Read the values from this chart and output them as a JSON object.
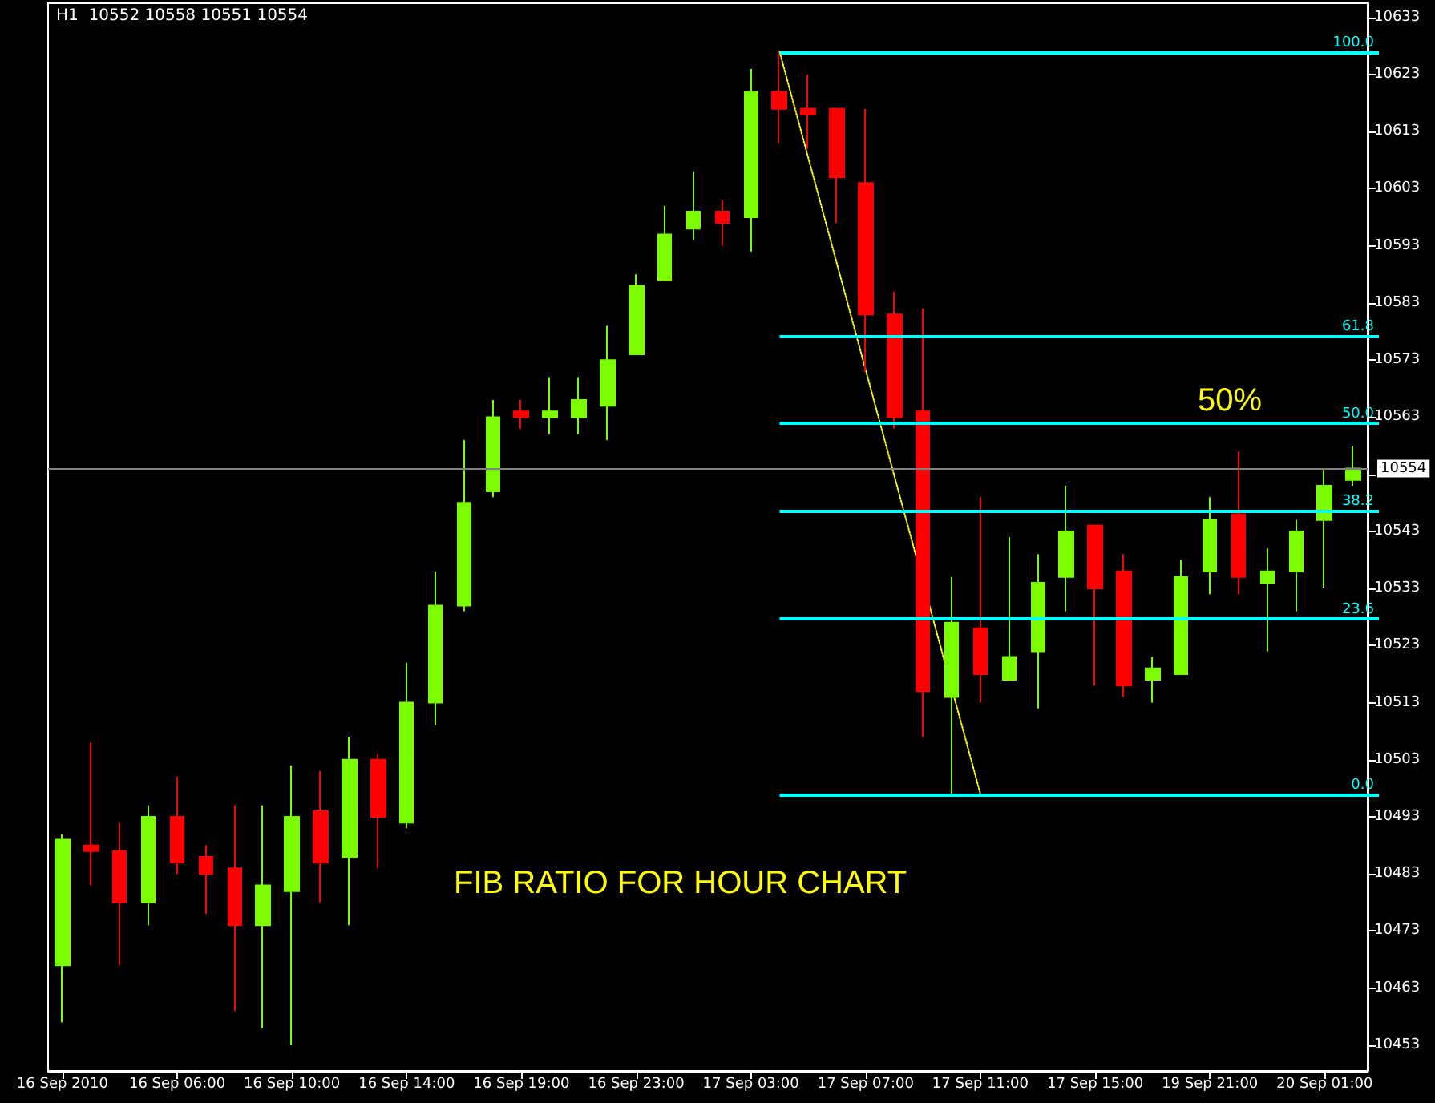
{
  "chart_data": {
    "type": "candlestick",
    "title": "H1  10552 10558 10551 10554",
    "categories": [
      "16 Sep 2010",
      null,
      null,
      null,
      "16 Sep 06:00",
      null,
      null,
      null,
      "16 Sep 10:00",
      null,
      null,
      null,
      "16 Sep 14:00",
      null,
      null,
      null,
      "16 Sep 19:00",
      null,
      null,
      null,
      "16 Sep 23:00",
      null,
      null,
      null,
      "17 Sep 03:00",
      null,
      null,
      null,
      "17 Sep 07:00",
      null,
      null,
      null,
      "17 Sep 11:00",
      null,
      null,
      null,
      "17 Sep 15:00",
      null,
      null,
      null,
      "19 Sep 21:00",
      null,
      null,
      null,
      "20 Sep 01:00",
      null
    ],
    "ohlc": [
      [
        10467,
        10490,
        10457,
        10489
      ],
      [
        10488,
        10506,
        10481,
        10487
      ],
      [
        10487,
        10492,
        10467,
        10478
      ],
      [
        10478,
        10495,
        10474,
        10493
      ],
      [
        10493,
        10500,
        10483,
        10485
      ],
      [
        10486,
        10488,
        10476,
        10483
      ],
      [
        10484,
        10495,
        10459,
        10474
      ],
      [
        10474,
        10495,
        10456,
        10481
      ],
      [
        10480,
        10502,
        10453,
        10493
      ],
      [
        10494,
        10501,
        10478,
        10485
      ],
      [
        10486,
        10507,
        10474,
        10503
      ],
      [
        10503,
        10504,
        10484,
        10493
      ],
      [
        10492,
        10520,
        10491,
        10513
      ],
      [
        10513,
        10536,
        10509,
        10530
      ],
      [
        10530,
        10559,
        10529,
        10548
      ],
      [
        10550,
        10566,
        10549,
        10563
      ],
      [
        10564,
        10566,
        10561,
        10563
      ],
      [
        10563,
        10570,
        10560,
        10564
      ],
      [
        10563,
        10570,
        10560,
        10566
      ],
      [
        10565,
        10579,
        10559,
        10573
      ],
      [
        10574,
        10588,
        10574,
        10586
      ],
      [
        10587,
        10600,
        10587,
        10595
      ],
      [
        10596,
        10606,
        10594,
        10599
      ],
      [
        10599,
        10601,
        10593,
        10597
      ],
      [
        10598,
        10624,
        10592,
        10620
      ],
      [
        10620,
        10627,
        10611,
        10617
      ],
      [
        10617,
        10623,
        10610,
        10616
      ],
      [
        10617,
        10617,
        10597,
        10605
      ],
      [
        10604,
        10617,
        10571,
        10581
      ],
      [
        10581,
        10585,
        10561,
        10563
      ],
      [
        10564,
        10582,
        10507,
        10515
      ],
      [
        10514,
        10535,
        10497,
        10527
      ],
      [
        10526,
        10549,
        10513,
        10518
      ],
      [
        10517,
        10542,
        10517,
        10521
      ],
      [
        10522,
        10539,
        10512,
        10534
      ],
      [
        10535,
        10551,
        10529,
        10543
      ],
      [
        10544,
        10544,
        10516,
        10533
      ],
      [
        10536,
        10539,
        10514,
        10516
      ],
      [
        10517,
        10521,
        10513,
        10519
      ],
      [
        10518,
        10538,
        10518,
        10535
      ],
      [
        10536,
        10549,
        10532,
        10545
      ],
      [
        10546,
        10557,
        10532,
        10535
      ],
      [
        10534,
        10540,
        10522,
        10536
      ],
      [
        10536,
        10545,
        10529,
        10543
      ],
      [
        10545,
        10554,
        10533,
        10551
      ],
      [
        10552,
        10558,
        10551,
        10554
      ]
    ],
    "colors": [
      "#7cfc00",
      "#ff0000",
      "#ff0000",
      "#7cfc00",
      "#ff0000",
      "#ff0000",
      "#ff0000",
      "#7cfc00",
      "#7cfc00",
      "#ff0000",
      "#7cfc00",
      "#ff0000",
      "#7cfc00",
      "#7cfc00",
      "#7cfc00",
      "#7cfc00",
      "#ff0000",
      "#7cfc00",
      "#7cfc00",
      "#7cfc00",
      "#7cfc00",
      "#7cfc00",
      "#7cfc00",
      "#ff0000",
      "#7cfc00",
      "#ff0000",
      "#ff0000",
      "#ff0000",
      "#ff0000",
      "#ff0000",
      "#ff0000",
      "#7cfc00",
      "#ff0000",
      "#7cfc00",
      "#7cfc00",
      "#7cfc00",
      "#ff0000",
      "#ff0000",
      "#7cfc00",
      "#7cfc00",
      "#7cfc00",
      "#ff0000",
      "#7cfc00",
      "#7cfc00",
      "#7cfc00",
      "#7cfc00"
    ],
    "series": [
      {
        "type": "line",
        "color": "#ffff00",
        "line_style": "dotted",
        "marker": "none",
        "values": [
          null,
          null,
          null,
          null,
          null,
          null,
          null,
          null,
          null,
          null,
          null,
          null,
          null,
          null,
          null,
          null,
          null,
          null,
          null,
          null,
          null,
          null,
          null,
          null,
          null,
          10627,
          null,
          null,
          null,
          null,
          null,
          null,
          10497,
          null,
          null,
          null,
          null,
          null,
          null,
          null,
          null,
          null,
          null,
          null,
          null,
          null
        ]
      }
    ],
    "ylim": [
      10448.5,
      10635.5
    ],
    "yticks": [
      10453,
      10463,
      10473,
      10483,
      10493,
      10503,
      10513,
      10523,
      10533,
      10543,
      {
        "value": 10553,
        "label": null
      },
      10563,
      10573,
      10583,
      10593,
      10603,
      10613,
      10623,
      10633
    ],
    "ref_lines": [
      {
        "axis": "y",
        "value": 10627,
        "color": "#00ffff"
      },
      {
        "axis": "y",
        "value": 10577.3,
        "color": "#00ffff"
      },
      {
        "axis": "y",
        "value": 10562,
        "color": "#00ffff"
      },
      {
        "axis": "y",
        "value": 10546.7,
        "color": "#00ffff"
      },
      {
        "axis": "y",
        "value": 10527.7,
        "color": "#00ffff"
      },
      {
        "axis": "y",
        "value": 10497,
        "color": "#00ffff"
      },
      {
        "axis": "y",
        "value": 10554,
        "label": "10554",
        "color": "#808080"
      }
    ],
    "annotations": [
      {
        "text": "50%",
        "y": 10562
      },
      "FIB RATIO FOR HOUR CHART",
      {
        "text": "100.0",
        "y": 10627
      },
      {
        "text": "61.8",
        "y": 10577.3
      },
      {
        "text": "50.0",
        "y": 10562
      },
      {
        "text": "38.2",
        "y": 10546.7
      },
      {
        "text": "23.6",
        "y": 10527.7
      },
      {
        "text": "0.0",
        "y": 10497
      }
    ],
    "grid": false
  }
}
